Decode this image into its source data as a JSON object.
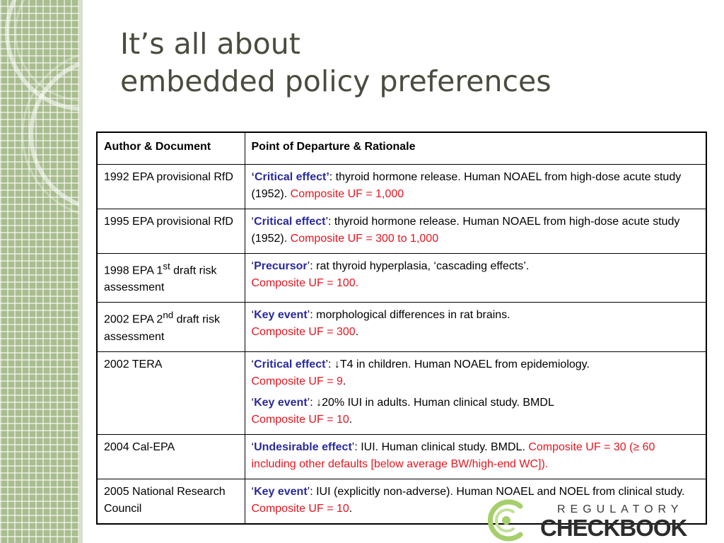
{
  "slide": {
    "title_line1": "It’s all about",
    "title_line2": "embedded policy preferences"
  },
  "table": {
    "headers": [
      "Author & Document",
      "Point of Departure & Rationale"
    ],
    "rows": [
      {
        "author": "1992 EPA provisional RfD",
        "q_open": "‘",
        "term": "Critical effect",
        "q_close": "’",
        "desc": ": thyroid hormone release. Human NOAEL from high-dose acute study (1952). ",
        "uf": "Composite UF = 1,000"
      },
      {
        "author": "1995 EPA provisional RfD",
        "q_open": "‘",
        "term": "Critical effect",
        "q_close": "’",
        "desc": ": thyroid hormone release. Human NOAEL from high-dose acute study (1952). ",
        "uf": "Composite UF = 300 to 1,000"
      },
      {
        "author_pre": "1998 EPA 1",
        "author_sup": "st",
        "author_post": " draft risk assessment",
        "q_open": "‘",
        "term": "Precursor",
        "q_close": "’",
        "desc": ": rat thyroid hyperplasia, ‘cascading effects’.",
        "uf": "Composite UF = 100."
      },
      {
        "author_pre": "2002 EPA 2",
        "author_sup": "nd",
        "author_post": " draft risk assessment",
        "q_open": "‘",
        "term": "Key event",
        "q_close": "’",
        "desc": ": morphological differences in rat brains.",
        "uf": "Composite UF = 300",
        "end": "."
      },
      {
        "author": "2002 TERA",
        "q_open": "‘",
        "term": "Critical effect",
        "q_close": "’",
        "desc": ": ↓T4 in children. Human NOAEL from epidemiology.",
        "uf": "Composite UF = 9",
        "end": ".",
        "q_open2": "‘",
        "term2": "Key event",
        "q_close2": "’",
        "desc2": ": ↓20% IUI in adults. Human clinical study. BMDL",
        "uf2": "Composite UF = 10",
        "end2": "."
      },
      {
        "author": "2004 Cal-EPA",
        "q_open": "‘",
        "term": "Undesirable effect",
        "q_close": "’",
        "desc": ": IUI. Human clinical study. BMDL. ",
        "uf": "Composite UF = 30 (≥ 60 including other defaults [below average BW/high-end WC])."
      },
      {
        "author": "2005 National Research Council",
        "q_open": "‘",
        "term": "Key event",
        "q_close": "’",
        "desc": ": IUI (explicitly non-adverse). Human NOAEL and NOEL from clinical study. ",
        "uf": "Composite UF = 10",
        "end": "."
      }
    ]
  },
  "logo": {
    "top": "REGULATORY",
    "bottom": "CHECKBOOK"
  },
  "colors": {
    "sidebar": "#a9bd8f",
    "title": "#4b4b3f",
    "term": "#2a2a9c",
    "uf": "#e8141e",
    "logo_green": "#a6cf6b"
  },
  "icons": {
    "logo_mark": "checkbook-c-logo-icon",
    "sidebar_decoration": "concentric-circles-decoration"
  }
}
